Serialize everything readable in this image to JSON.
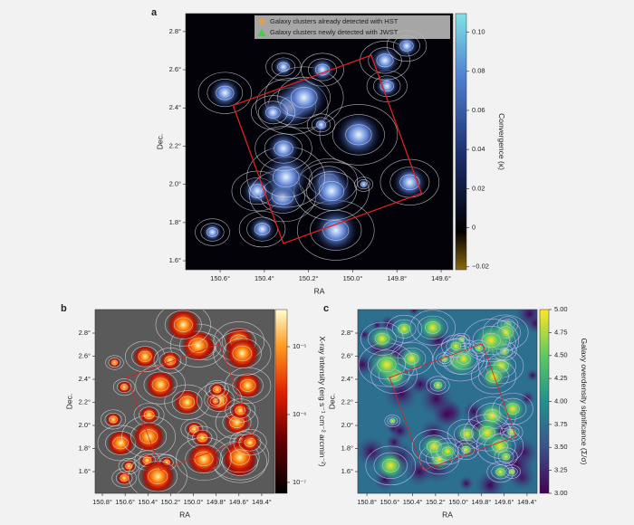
{
  "panels": [
    {
      "letter": "a",
      "xlabel": "RA",
      "ylabel": "Dec.",
      "xlim": [
        150.756,
        149.547
      ],
      "ylim": [
        1.553,
        2.894
      ],
      "xticks": [
        {
          "value": 150.6,
          "label": "150.6°"
        },
        {
          "value": 150.4,
          "label": "150.4°"
        },
        {
          "value": 150.2,
          "label": "150.2°"
        },
        {
          "value": 150.0,
          "label": "150.0°"
        },
        {
          "value": 149.8,
          "label": "149.8°"
        },
        {
          "value": 149.6,
          "label": "149.6°"
        }
      ],
      "yticks": [
        {
          "value": 2.8,
          "label": "2.8°"
        },
        {
          "value": 2.6,
          "label": "2.6°"
        },
        {
          "value": 2.4,
          "label": "2.4°"
        },
        {
          "value": 2.2,
          "label": "2.2°"
        },
        {
          "value": 2.0,
          "label": "2.0°"
        },
        {
          "value": 1.8,
          "label": "1.8°"
        },
        {
          "value": 1.6,
          "label": "1.6°"
        }
      ],
      "legend": [
        "Galaxy clusters already detected with HST",
        "Galaxy clusters newly detected with JWST"
      ],
      "colorbar": {
        "label": "Convergence (κ)",
        "scale": "linear",
        "lim": [
          -0.0215,
          0.1095
        ],
        "ticks": [
          {
            "value": 0.1,
            "label": "0.10"
          },
          0.08,
          0.06,
          0.04,
          0.02,
          0,
          {
            "value": -0.02,
            "label": "−0.02"
          }
        ]
      }
    },
    {
      "letter": "b",
      "xlabel": "RA",
      "ylabel": "Dec.",
      "xlim": [
        150.864,
        149.288
      ],
      "ylim": [
        1.412,
        3.004
      ],
      "xticks": [
        {
          "value": 150.8,
          "label": "150.8°"
        },
        {
          "value": 150.6,
          "label": "150.6°"
        },
        {
          "value": 150.4,
          "label": "150.4°"
        },
        {
          "value": 150.2,
          "label": "150.2°"
        },
        {
          "value": 150.0,
          "label": "150.0°"
        },
        {
          "value": 149.8,
          "label": "149.8°"
        },
        {
          "value": 149.6,
          "label": "149.6°"
        },
        {
          "value": 149.4,
          "label": "149.4°"
        }
      ],
      "yticks": [
        {
          "value": 2.8,
          "label": "2.8°"
        },
        {
          "value": 2.6,
          "label": "2.6°"
        },
        {
          "value": 2.4,
          "label": "2.4°"
        },
        {
          "value": 2.2,
          "label": "2.2°"
        },
        {
          "value": 2.0,
          "label": "2.0°"
        },
        {
          "value": 1.8,
          "label": "1.8°"
        },
        {
          "value": 1.6,
          "label": "1.6°"
        }
      ],
      "colorbar": {
        "label": "X-ray intensity (erg s⁻¹ cm⁻² arcmin⁻²)",
        "scale": "log",
        "lim": [
          6.9e-08,
          3.52e-05
        ],
        "ticks": [
          {
            "value": 1e-05,
            "label": "10⁻⁵"
          },
          {
            "value": 1e-06,
            "label": "10⁻⁶"
          },
          {
            "value": 1e-07,
            "label": "10⁻⁷"
          }
        ]
      }
    },
    {
      "letter": "c",
      "xlabel": "RA",
      "ylabel": "Dec.",
      "xlim": [
        150.88,
        149.312
      ],
      "ylim": [
        1.412,
        3.004
      ],
      "xticks": [
        {
          "value": 150.8,
          "label": "150.8°"
        },
        {
          "value": 150.6,
          "label": "150.6°"
        },
        {
          "value": 150.4,
          "label": "150.4°"
        },
        {
          "value": 150.2,
          "label": "150.2°"
        },
        {
          "value": 150.0,
          "label": "150.0°"
        },
        {
          "value": 149.8,
          "label": "149.8°"
        },
        {
          "value": 149.6,
          "label": "149.6°"
        },
        {
          "value": 149.4,
          "label": "149.4°"
        }
      ],
      "yticks": [
        {
          "value": 2.8,
          "label": "2.8°"
        },
        {
          "value": 2.6,
          "label": "2.6°"
        },
        {
          "value": 2.4,
          "label": "2.4°"
        },
        {
          "value": 2.2,
          "label": "2.2°"
        },
        {
          "value": 2.0,
          "label": "2.0°"
        },
        {
          "value": 1.8,
          "label": "1.8°"
        },
        {
          "value": 1.6,
          "label": "1.6°"
        }
      ],
      "colorbar": {
        "label": "Galaxy overdensity significance (Σ/σ)",
        "scale": "linear",
        "lim": [
          3.0,
          5.0
        ],
        "ticks": [
          {
            "value": 5,
            "label": "5.00"
          },
          {
            "value": 4.75,
            "label": "4.75"
          },
          {
            "value": 4.5,
            "label": "4.50"
          },
          {
            "value": 4.25,
            "label": "4.25"
          },
          {
            "value": 4,
            "label": "4.00"
          },
          {
            "value": 3.75,
            "label": "3.75"
          },
          {
            "value": 3.5,
            "label": "3.50"
          },
          {
            "value": 3.25,
            "label": "3.25"
          },
          {
            "value": 3,
            "label": "3.00"
          }
        ]
      }
    }
  ]
}
